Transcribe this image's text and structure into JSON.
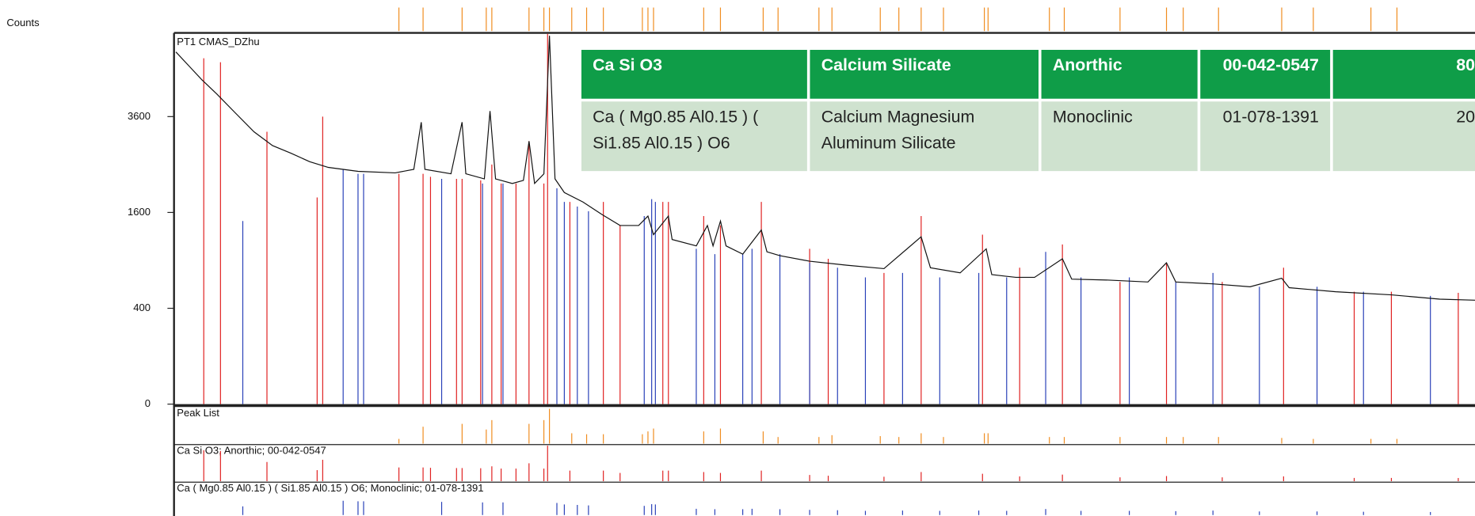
{
  "chart_data": {
    "type": "line",
    "y_label": "Counts",
    "yscale": "sqrt",
    "xlim": [
      10,
      80
    ],
    "ylim": [
      0,
      6000
    ],
    "yticks": [
      0,
      400,
      1600,
      3600
    ],
    "series": [
      {
        "name": "PT1 CMAS_DZhu",
        "color": "#111111",
        "style": "line",
        "x": [
          10.1,
          10.8,
          11.5,
          12.3,
          13.3,
          14.3,
          15.3,
          16.3,
          17.3,
          18.3,
          19.9,
          21.9,
          22.9,
          23.3,
          23.5,
          24.9,
          25.5,
          25.7,
          26.7,
          27.0,
          27.3,
          28.2,
          28.8,
          29.1,
          29.4,
          29.9,
          30.2,
          30.5,
          31.0,
          32.0,
          33.0,
          34.0,
          35.0,
          35.5,
          35.8,
          36.6,
          36.8,
          38.1,
          38.7,
          39.0,
          39.4,
          39.7,
          40.6,
          41.6,
          41.9,
          42.6,
          44.2,
          46.2,
          48.2,
          50.2,
          50.7,
          52.3,
          53.7,
          54.0,
          55.3,
          56.3,
          57.8,
          58.3,
          60.3,
          62.4,
          63.4,
          63.9,
          65.9,
          67.9,
          69.6,
          70.0,
          72.5,
          75.5,
          78.1,
          80.0
        ],
        "values": [
          5400,
          4980,
          4580,
          4190,
          3690,
          3230,
          2910,
          2740,
          2560,
          2440,
          2360,
          2330,
          2400,
          3460,
          2400,
          2310,
          3460,
          2310,
          2210,
          3740,
          2210,
          2120,
          2180,
          3010,
          2120,
          2310,
          5910,
          2210,
          1950,
          1780,
          1570,
          1390,
          1390,
          1540,
          1250,
          1540,
          1180,
          1090,
          1390,
          1090,
          1460,
          1090,
          980,
          1320,
          1010,
          960,
          890,
          840,
          800,
          1220,
          810,
          750,
          1050,
          730,
          700,
          700,
          920,
          680,
          670,
          650,
          870,
          650,
          630,
          600,
          690,
          590,
          550,
          520,
          480,
          470
        ]
      },
      {
        "name": "Ca Si O3; Anorthic; 00-042-0547",
        "color": "#e02020",
        "style": "stick",
        "x": [
          11.6,
          12.5,
          15.0,
          17.7,
          18.0,
          22.1,
          23.4,
          23.8,
          25.2,
          25.5,
          26.5,
          27.1,
          27.6,
          28.4,
          29.1,
          29.9,
          30.1,
          31.3,
          33.1,
          34.0,
          36.3,
          36.6,
          38.5,
          39.4,
          41.6,
          44.2,
          45.2,
          48.2,
          50.2,
          53.5,
          55.5,
          57.8,
          60.9,
          63.4,
          66.4,
          69.7,
          73.5,
          75.5,
          79.1
        ],
        "values": [
          5210,
          5090,
          3230,
          1860,
          3600,
          2310,
          2310,
          2250,
          2210,
          2210,
          2180,
          2500,
          2120,
          2120,
          3010,
          2120,
          5970,
          1780,
          1780,
          1390,
          1780,
          1780,
          1540,
          1390,
          1780,
          1050,
          920,
          750,
          1540,
          1250,
          810,
          1110,
          650,
          870,
          650,
          810,
          550,
          550,
          540
        ]
      },
      {
        "name": "Ca ( Mg0.85 Al0.15 ) ( Si1.85 Al0.15 ) O6; Monoclinic; 01-078-1391",
        "color": "#2840b8",
        "style": "stick",
        "x": [
          13.7,
          19.1,
          19.9,
          20.2,
          24.4,
          26.6,
          27.7,
          30.6,
          31.0,
          31.7,
          32.3,
          35.3,
          35.7,
          35.9,
          38.1,
          39.1,
          40.6,
          41.1,
          42.6,
          44.2,
          45.7,
          47.2,
          49.2,
          51.2,
          53.3,
          54.8,
          56.9,
          58.8,
          61.4,
          63.9,
          65.9,
          68.4,
          71.5,
          74.0,
          77.6
        ],
        "values": [
          1460,
          2400,
          2310,
          2310,
          2210,
          2120,
          2120,
          2030,
          1780,
          1700,
          1620,
          1540,
          1830,
          1780,
          1050,
          980,
          980,
          1050,
          980,
          870,
          810,
          700,
          750,
          700,
          750,
          700,
          1010,
          700,
          700,
          650,
          750,
          600,
          600,
          550,
          510
        ]
      }
    ],
    "peak_list": {
      "name": "Peak List",
      "color": "#f08c1e",
      "x": [
        22.1,
        23.4,
        25.5,
        26.8,
        27.1,
        29.1,
        29.9,
        30.2,
        31.4,
        32.2,
        33.1,
        35.2,
        35.5,
        35.8,
        38.5,
        39.4,
        41.7,
        42.5,
        44.7,
        45.4,
        48.0,
        49.0,
        50.2,
        51.4,
        53.6,
        53.8,
        57.1,
        57.9,
        60.9,
        63.4,
        64.3,
        66.2,
        69.6,
        71.3,
        74.4,
        75.8
      ],
      "values": [
        790,
        2840,
        3320,
        2370,
        3950,
        3320,
        3950,
        5840,
        1740,
        1580,
        1580,
        1580,
        2050,
        2530,
        2050,
        2530,
        2050,
        1110,
        1110,
        1420,
        1260,
        1110,
        1740,
        1110,
        1740,
        1740,
        1110,
        1110,
        1110,
        1110,
        1110,
        1110,
        950,
        790,
        790,
        790
      ]
    }
  },
  "table": {
    "columns": [
      "Ca Si O3",
      "Calcium Silicate",
      "Anorthic",
      "00-042-0547",
      "80"
    ],
    "rows": [
      [
        "Ca ( Mg0.85 Al0.15 ) ( Si1.85 Al0.15 ) O6",
        "Calcium Magnesium Aluminum Silicate",
        "Monoclinic",
        "01-078-1391",
        "20"
      ]
    ]
  }
}
